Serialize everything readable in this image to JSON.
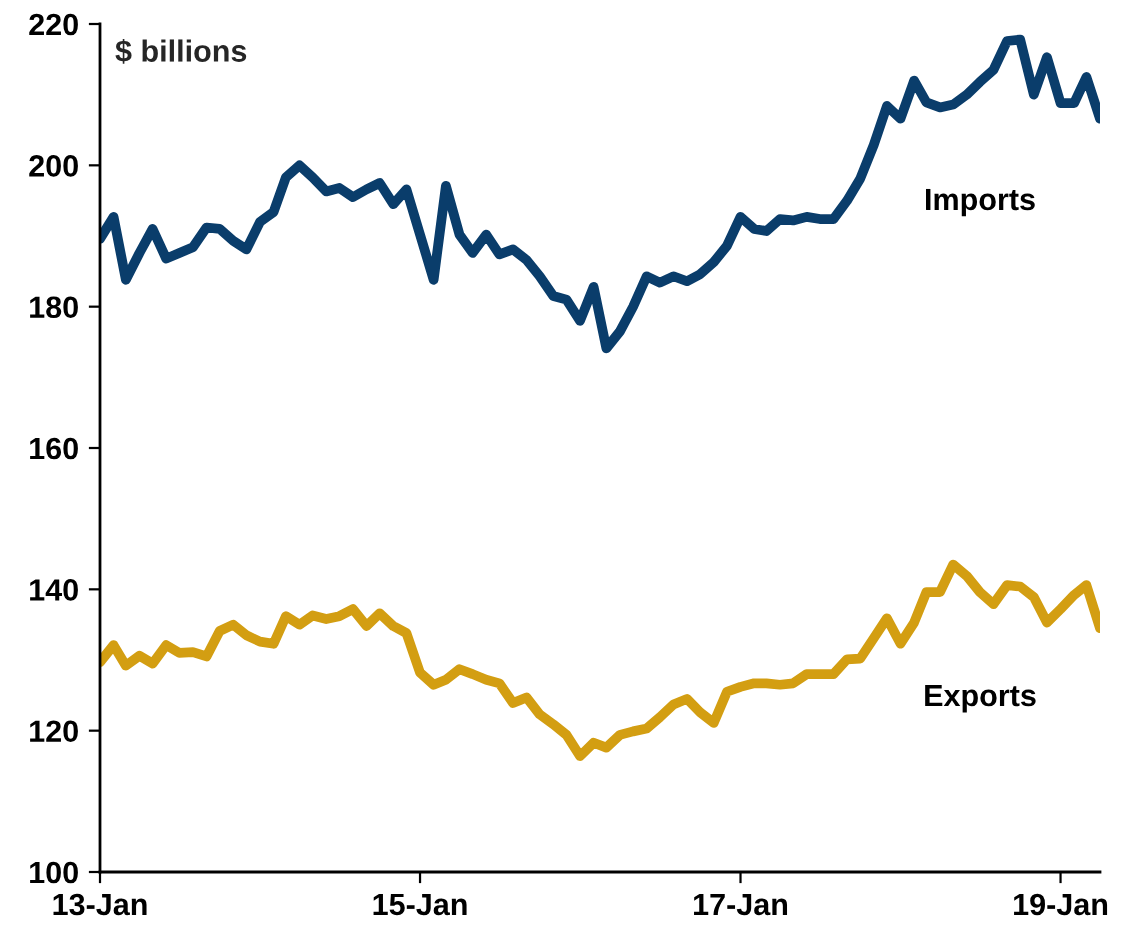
{
  "chart_data": {
    "type": "line",
    "ylabel": "$ billions",
    "x": [
      "2013-01",
      "2013-02",
      "2013-03",
      "2013-04",
      "2013-05",
      "2013-06",
      "2013-07",
      "2013-08",
      "2013-09",
      "2013-10",
      "2013-11",
      "2013-12",
      "2014-01",
      "2014-02",
      "2014-03",
      "2014-04",
      "2014-05",
      "2014-06",
      "2014-07",
      "2014-08",
      "2014-09",
      "2014-10",
      "2014-11",
      "2014-12",
      "2015-01",
      "2015-02",
      "2015-03",
      "2015-04",
      "2015-05",
      "2015-06",
      "2015-07",
      "2015-08",
      "2015-09",
      "2015-10",
      "2015-11",
      "2015-12",
      "2016-01",
      "2016-02",
      "2016-03",
      "2016-04",
      "2016-05",
      "2016-06",
      "2016-07",
      "2016-08",
      "2016-09",
      "2016-10",
      "2016-11",
      "2016-12",
      "2017-01",
      "2017-02",
      "2017-03",
      "2017-04",
      "2017-05",
      "2017-06",
      "2017-07",
      "2017-08",
      "2017-09",
      "2017-10",
      "2017-11",
      "2017-12",
      "2018-01",
      "2018-02",
      "2018-03",
      "2018-04",
      "2018-05",
      "2018-06",
      "2018-07",
      "2018-08",
      "2018-09",
      "2018-10",
      "2018-11",
      "2018-12",
      "2019-01",
      "2019-02",
      "2019-03",
      "2019-04"
    ],
    "series": [
      {
        "name": "Imports",
        "color": "#0a3d6b",
        "values": [
          189.6,
          192.7,
          183.8,
          187.6,
          191.0,
          186.8,
          187.6,
          188.4,
          191.2,
          191.0,
          189.3,
          188.1,
          192.0,
          193.4,
          198.3,
          200.0,
          198.3,
          196.3,
          196.8,
          195.5,
          196.6,
          197.5,
          194.5,
          196.6,
          190.2,
          183.8,
          197.1,
          190.2,
          187.6,
          190.2,
          187.4,
          188.1,
          186.6,
          184.3,
          181.5,
          181.0,
          178.0,
          182.8,
          174.1,
          176.5,
          180.0,
          184.3,
          183.4,
          184.3,
          183.6,
          184.6,
          186.3,
          188.6,
          192.7,
          191.0,
          190.7,
          192.4,
          192.2,
          192.7,
          192.4,
          192.4,
          195.0,
          198.1,
          202.9,
          208.4,
          206.6,
          212.0,
          208.9,
          208.2,
          208.6,
          210.0,
          211.8,
          213.5,
          217.6,
          217.8,
          210.0,
          215.3,
          208.8,
          208.8,
          212.5,
          206.6
        ]
      },
      {
        "name": "Exports",
        "color": "#d39e12",
        "values": [
          129.7,
          132.1,
          129.2,
          130.6,
          129.5,
          132.1,
          131.0,
          131.1,
          130.5,
          134.1,
          135.0,
          133.5,
          132.6,
          132.3,
          136.2,
          135.0,
          136.3,
          135.8,
          136.2,
          137.2,
          134.8,
          136.6,
          134.8,
          133.8,
          128.2,
          126.5,
          127.2,
          128.7,
          128.0,
          127.2,
          126.7,
          123.9,
          124.7,
          122.3,
          120.9,
          119.4,
          116.4,
          118.3,
          117.6,
          119.4,
          119.9,
          120.3,
          121.9,
          123.7,
          124.5,
          122.6,
          121.1,
          125.5,
          126.2,
          126.7,
          126.7,
          126.5,
          126.7,
          128.0,
          128.0,
          128.0,
          130.1,
          130.2,
          133.1,
          135.9,
          132.3,
          135.3,
          139.6,
          139.6,
          143.5,
          141.9,
          139.6,
          137.9,
          140.6,
          140.4,
          138.9,
          135.3,
          137.2,
          139.2,
          140.6,
          134.5
        ]
      }
    ],
    "xlim": [
      "2013-01",
      "2019-04"
    ],
    "xticks": [
      {
        "value": "2013-01",
        "label": "13-Jan"
      },
      {
        "value": "2015-01",
        "label": "15-Jan"
      },
      {
        "value": "2017-01",
        "label": "17-Jan"
      },
      {
        "value": "2019-01",
        "label": "19-Jan"
      }
    ],
    "ylim": [
      100,
      220
    ],
    "yticks": [
      100,
      120,
      140,
      160,
      180,
      200,
      220
    ],
    "line_style": "solid"
  }
}
